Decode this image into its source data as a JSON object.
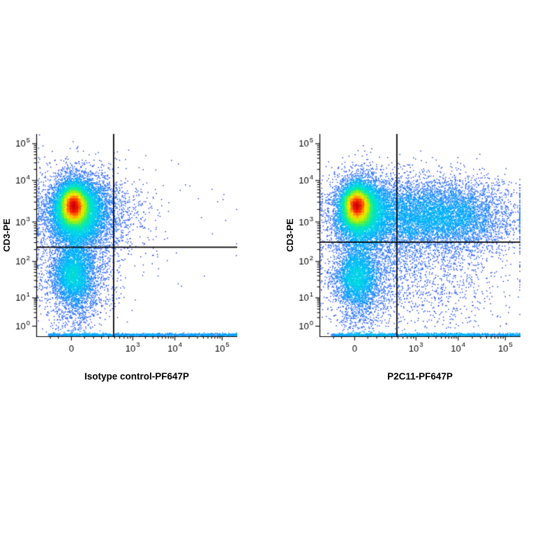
{
  "figure": {
    "description": "Two flow cytometry pseudocolor density dot plots with quadrant gates",
    "background": "#ffffff"
  },
  "style": {
    "axis_color": "#000000",
    "quadrant_color": "#000000",
    "point_size": 1.5,
    "density_exponent": 0.45,
    "colormap": [
      "#2a35e0",
      "#2b55ff",
      "#2d7bff",
      "#00aaff",
      "#00d4e8",
      "#00eab4",
      "#46f25a",
      "#b8f000",
      "#f5e800",
      "#ff9000",
      "#ff3000",
      "#cc0000"
    ]
  },
  "chart_data": [
    {
      "type": "scatter",
      "subtype": "flow-cytometry-density",
      "scale": "biexponential",
      "xlabel": "Isotype control-PF647P",
      "ylabel": "CD3-PE",
      "seed": 42,
      "x_ticks": [
        {
          "label": "0",
          "pos": 0.175
        },
        {
          "exp": "3",
          "pos": 0.48
        },
        {
          "exp": "4",
          "pos": 0.69
        },
        {
          "exp": "5",
          "pos": 0.925
        }
      ],
      "x_extra_minor": [
        0.07,
        0.11,
        0.24,
        0.285,
        0.325,
        0.36,
        0.39,
        0.415,
        0.437,
        0.455,
        0.468
      ],
      "y_ticks": [
        {
          "exp": "0",
          "pos": 0.05
        },
        {
          "exp": "1",
          "pos": 0.19
        },
        {
          "exp": "2",
          "pos": 0.37
        },
        {
          "exp": "3",
          "pos": 0.565
        },
        {
          "exp": "4",
          "pos": 0.77
        },
        {
          "exp": "5",
          "pos": 0.952
        }
      ],
      "quadrant": {
        "x": 0.385,
        "y": 0.44
      },
      "populations": [
        {
          "name": "cd3pos-core",
          "n": 8000,
          "cx": 0.185,
          "cy": 0.645,
          "sx": 0.03,
          "sy": 0.042
        },
        {
          "name": "cd3pos-mid",
          "n": 6500,
          "cx": 0.197,
          "cy": 0.622,
          "sx": 0.056,
          "sy": 0.072
        },
        {
          "name": "cd3pos-outer",
          "n": 3800,
          "cx": 0.22,
          "cy": 0.6,
          "sx": 0.1,
          "sy": 0.105
        },
        {
          "name": "cd3pos-halo",
          "n": 900,
          "cx": 0.3,
          "cy": 0.6,
          "sx": 0.135,
          "sy": 0.11
        },
        {
          "name": "cd3neg-main",
          "n": 2600,
          "cx": 0.185,
          "cy": 0.315,
          "sx": 0.05,
          "sy": 0.068
        },
        {
          "name": "cd3neg-wide",
          "n": 1400,
          "cx": 0.205,
          "cy": 0.28,
          "sx": 0.09,
          "sy": 0.1
        },
        {
          "name": "cd3neg-tail",
          "n": 500,
          "cx": 0.19,
          "cy": 0.13,
          "sx": 0.06,
          "sy": 0.09
        },
        {
          "name": "axis-floor-strip",
          "n": 1400,
          "shape": "strip",
          "x0": 0.06,
          "x1": 1.0,
          "cy": 0.006,
          "sy": 0.004
        },
        {
          "name": "sparse-background",
          "n": 90,
          "cx": 0.5,
          "cy": 0.55,
          "sx": 0.26,
          "sy": 0.18
        }
      ]
    },
    {
      "type": "scatter",
      "subtype": "flow-cytometry-density",
      "scale": "biexponential",
      "xlabel": "P2C11-PF647P",
      "ylabel": "CD3-PE",
      "seed": 1337,
      "x_ticks": [
        {
          "label": "0",
          "pos": 0.175
        },
        {
          "exp": "3",
          "pos": 0.48
        },
        {
          "exp": "4",
          "pos": 0.69
        },
        {
          "exp": "5",
          "pos": 0.925
        }
      ],
      "x_extra_minor": [
        0.07,
        0.11,
        0.24,
        0.285,
        0.325,
        0.36,
        0.39,
        0.415,
        0.437,
        0.455,
        0.468
      ],
      "y_ticks": [
        {
          "exp": "0",
          "pos": 0.05
        },
        {
          "exp": "1",
          "pos": 0.19
        },
        {
          "exp": "2",
          "pos": 0.37
        },
        {
          "exp": "3",
          "pos": 0.565
        },
        {
          "exp": "4",
          "pos": 0.77
        },
        {
          "exp": "5",
          "pos": 0.952
        }
      ],
      "quadrant": {
        "x": 0.385,
        "y": 0.465
      },
      "populations": [
        {
          "name": "cd3pos-core",
          "n": 7000,
          "cx": 0.185,
          "cy": 0.645,
          "sx": 0.03,
          "sy": 0.042
        },
        {
          "name": "cd3pos-mid",
          "n": 5500,
          "cx": 0.2,
          "cy": 0.62,
          "sx": 0.056,
          "sy": 0.072
        },
        {
          "name": "cd3pos-outer",
          "n": 3000,
          "cx": 0.23,
          "cy": 0.6,
          "sx": 0.095,
          "sy": 0.105
        },
        {
          "name": "double-pos-cloud",
          "n": 4800,
          "cx": 0.52,
          "cy": 0.6,
          "sx": 0.17,
          "sy": 0.088
        },
        {
          "name": "double-pos-cloud-right",
          "n": 2200,
          "cx": 0.72,
          "cy": 0.585,
          "sx": 0.15,
          "sy": 0.095
        },
        {
          "name": "cd3neg-main",
          "n": 2200,
          "cx": 0.185,
          "cy": 0.3,
          "sx": 0.05,
          "sy": 0.07
        },
        {
          "name": "cd3neg-wide",
          "n": 1200,
          "cx": 0.21,
          "cy": 0.27,
          "sx": 0.09,
          "sy": 0.1
        },
        {
          "name": "low-right-scatter",
          "n": 900,
          "cx": 0.55,
          "cy": 0.28,
          "sx": 0.19,
          "sy": 0.13
        },
        {
          "name": "cd3neg-tail",
          "n": 400,
          "cx": 0.2,
          "cy": 0.12,
          "sx": 0.06,
          "sy": 0.08
        },
        {
          "name": "bridge-scatter",
          "n": 600,
          "cx": 0.38,
          "cy": 0.46,
          "sx": 0.13,
          "sy": 0.15
        },
        {
          "name": "axis-floor-strip",
          "n": 1500,
          "shape": "strip",
          "x0": 0.06,
          "x1": 1.0,
          "cy": 0.006,
          "sy": 0.004
        }
      ]
    }
  ]
}
